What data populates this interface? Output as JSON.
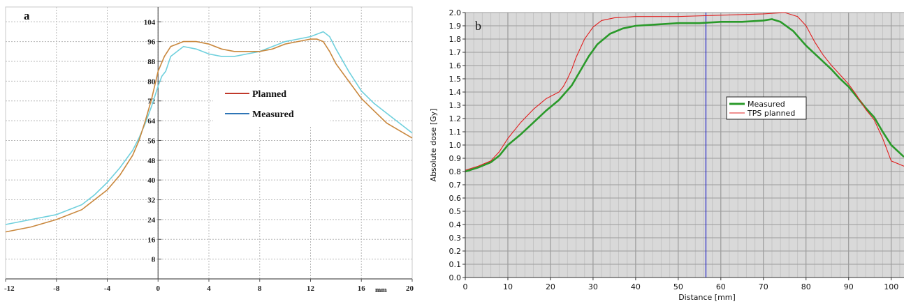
{
  "chart_data": [
    {
      "type": "line",
      "panel_label": "a",
      "xlabel": "mm",
      "ylabel": "",
      "xlim": [
        -12,
        20
      ],
      "ylim": [
        0,
        110
      ],
      "x_ticks": [
        -12,
        -8,
        -4,
        0,
        4,
        8,
        12,
        16,
        20
      ],
      "y_ticks": [
        8,
        16,
        24,
        32,
        40,
        48,
        56,
        64,
        72,
        80,
        88,
        96,
        104
      ],
      "legend": [
        "Planned",
        "Measured"
      ],
      "legend_position": "center-right",
      "colors": {
        "legend_planned": "#c0392b",
        "legend_measured": "#2e75b6",
        "series_orange": "#c9883e",
        "series_cyan": "#6fd0dd"
      },
      "series": [
        {
          "name": "Planned",
          "x": [
            -12,
            -10,
            -8,
            -6,
            -5,
            -4,
            -3,
            -2,
            -1.5,
            -1,
            -0.5,
            0,
            0.5,
            1,
            2,
            3,
            4,
            5,
            6,
            7,
            8,
            9,
            10,
            11,
            12,
            12.5,
            13,
            13.5,
            14,
            15,
            16,
            17,
            18,
            19,
            20
          ],
          "y": [
            19,
            21,
            24,
            28,
            32,
            36,
            42,
            50,
            56,
            64,
            73,
            84,
            90,
            94,
            96,
            96,
            95,
            93,
            92,
            92,
            92,
            93,
            95,
            96,
            97,
            97,
            96,
            92,
            87,
            80,
            73,
            68,
            63,
            60,
            57
          ]
        },
        {
          "name": "Measured",
          "x": [
            -12,
            -10,
            -8,
            -6,
            -5,
            -4,
            -3,
            -2,
            -1.5,
            -1,
            -0.5,
            0,
            0.3,
            0.6,
            1,
            2,
            3,
            4,
            5,
            6,
            7,
            8,
            9,
            10,
            11,
            12,
            12.5,
            13,
            13.5,
            14,
            15,
            16,
            17,
            18,
            19,
            20
          ],
          "y": [
            22,
            24,
            26,
            30,
            34,
            39,
            45,
            52,
            57,
            63,
            70,
            78,
            82,
            84,
            90,
            94,
            93,
            91,
            90,
            90,
            91,
            92,
            94,
            96,
            97,
            98,
            99,
            100,
            98,
            93,
            84,
            76,
            71,
            67,
            63,
            59
          ]
        }
      ]
    },
    {
      "type": "line",
      "panel_label": "b",
      "xlabel": "Distance [mm]",
      "ylabel": "Absolute dose [Gy]",
      "xlim": [
        0,
        103
      ],
      "ylim": [
        0,
        2.0
      ],
      "x_ticks": [
        0,
        10,
        20,
        30,
        40,
        50,
        60,
        70,
        80,
        90,
        100
      ],
      "y_ticks": [
        "0.0",
        "0.1",
        "0.2",
        "0.3",
        "0.4",
        "0.5",
        "0.6",
        "0.7",
        "0.8",
        "0.9",
        "1.0",
        "1.1",
        "1.2",
        "1.3",
        "1.4",
        "1.5",
        "1.6",
        "1.7",
        "1.8",
        "1.9",
        "2.0"
      ],
      "marker_x": 56.5,
      "legend_position": "center-right",
      "colors": {
        "measured": "#2a9a2a",
        "tps_planned": "#e02020",
        "marker": "#2323c8",
        "plot_bg": "#d9d9d9"
      },
      "series": [
        {
          "name": "Measured",
          "x": [
            0,
            3,
            6,
            8,
            10,
            13,
            16,
            19,
            22,
            25,
            27,
            29,
            31,
            34,
            37,
            40,
            45,
            50,
            55,
            60,
            65,
            70,
            72,
            74,
            77,
            80,
            83,
            86,
            88,
            90,
            92,
            94,
            96,
            98,
            100,
            103
          ],
          "y": [
            0.8,
            0.83,
            0.87,
            0.92,
            1.0,
            1.08,
            1.17,
            1.26,
            1.34,
            1.45,
            1.56,
            1.67,
            1.76,
            1.84,
            1.88,
            1.9,
            1.91,
            1.92,
            1.92,
            1.93,
            1.93,
            1.94,
            1.95,
            1.93,
            1.86,
            1.75,
            1.66,
            1.57,
            1.5,
            1.44,
            1.36,
            1.28,
            1.21,
            1.1,
            1.0,
            0.91
          ]
        },
        {
          "name": "TPS planned",
          "x": [
            0,
            3,
            6,
            8,
            10,
            13,
            16,
            19,
            22,
            23,
            24,
            25,
            26,
            28,
            30,
            32,
            35,
            40,
            50,
            60,
            70,
            75,
            78,
            80,
            82,
            84,
            86,
            88,
            90,
            92,
            94,
            96,
            98,
            100,
            103
          ],
          "y": [
            0.81,
            0.84,
            0.88,
            0.95,
            1.05,
            1.17,
            1.27,
            1.35,
            1.4,
            1.44,
            1.5,
            1.57,
            1.66,
            1.8,
            1.89,
            1.94,
            1.96,
            1.97,
            1.97,
            1.98,
            1.99,
            2.0,
            1.97,
            1.9,
            1.78,
            1.68,
            1.6,
            1.53,
            1.46,
            1.37,
            1.27,
            1.19,
            1.05,
            0.88,
            0.84
          ]
        }
      ]
    }
  ]
}
